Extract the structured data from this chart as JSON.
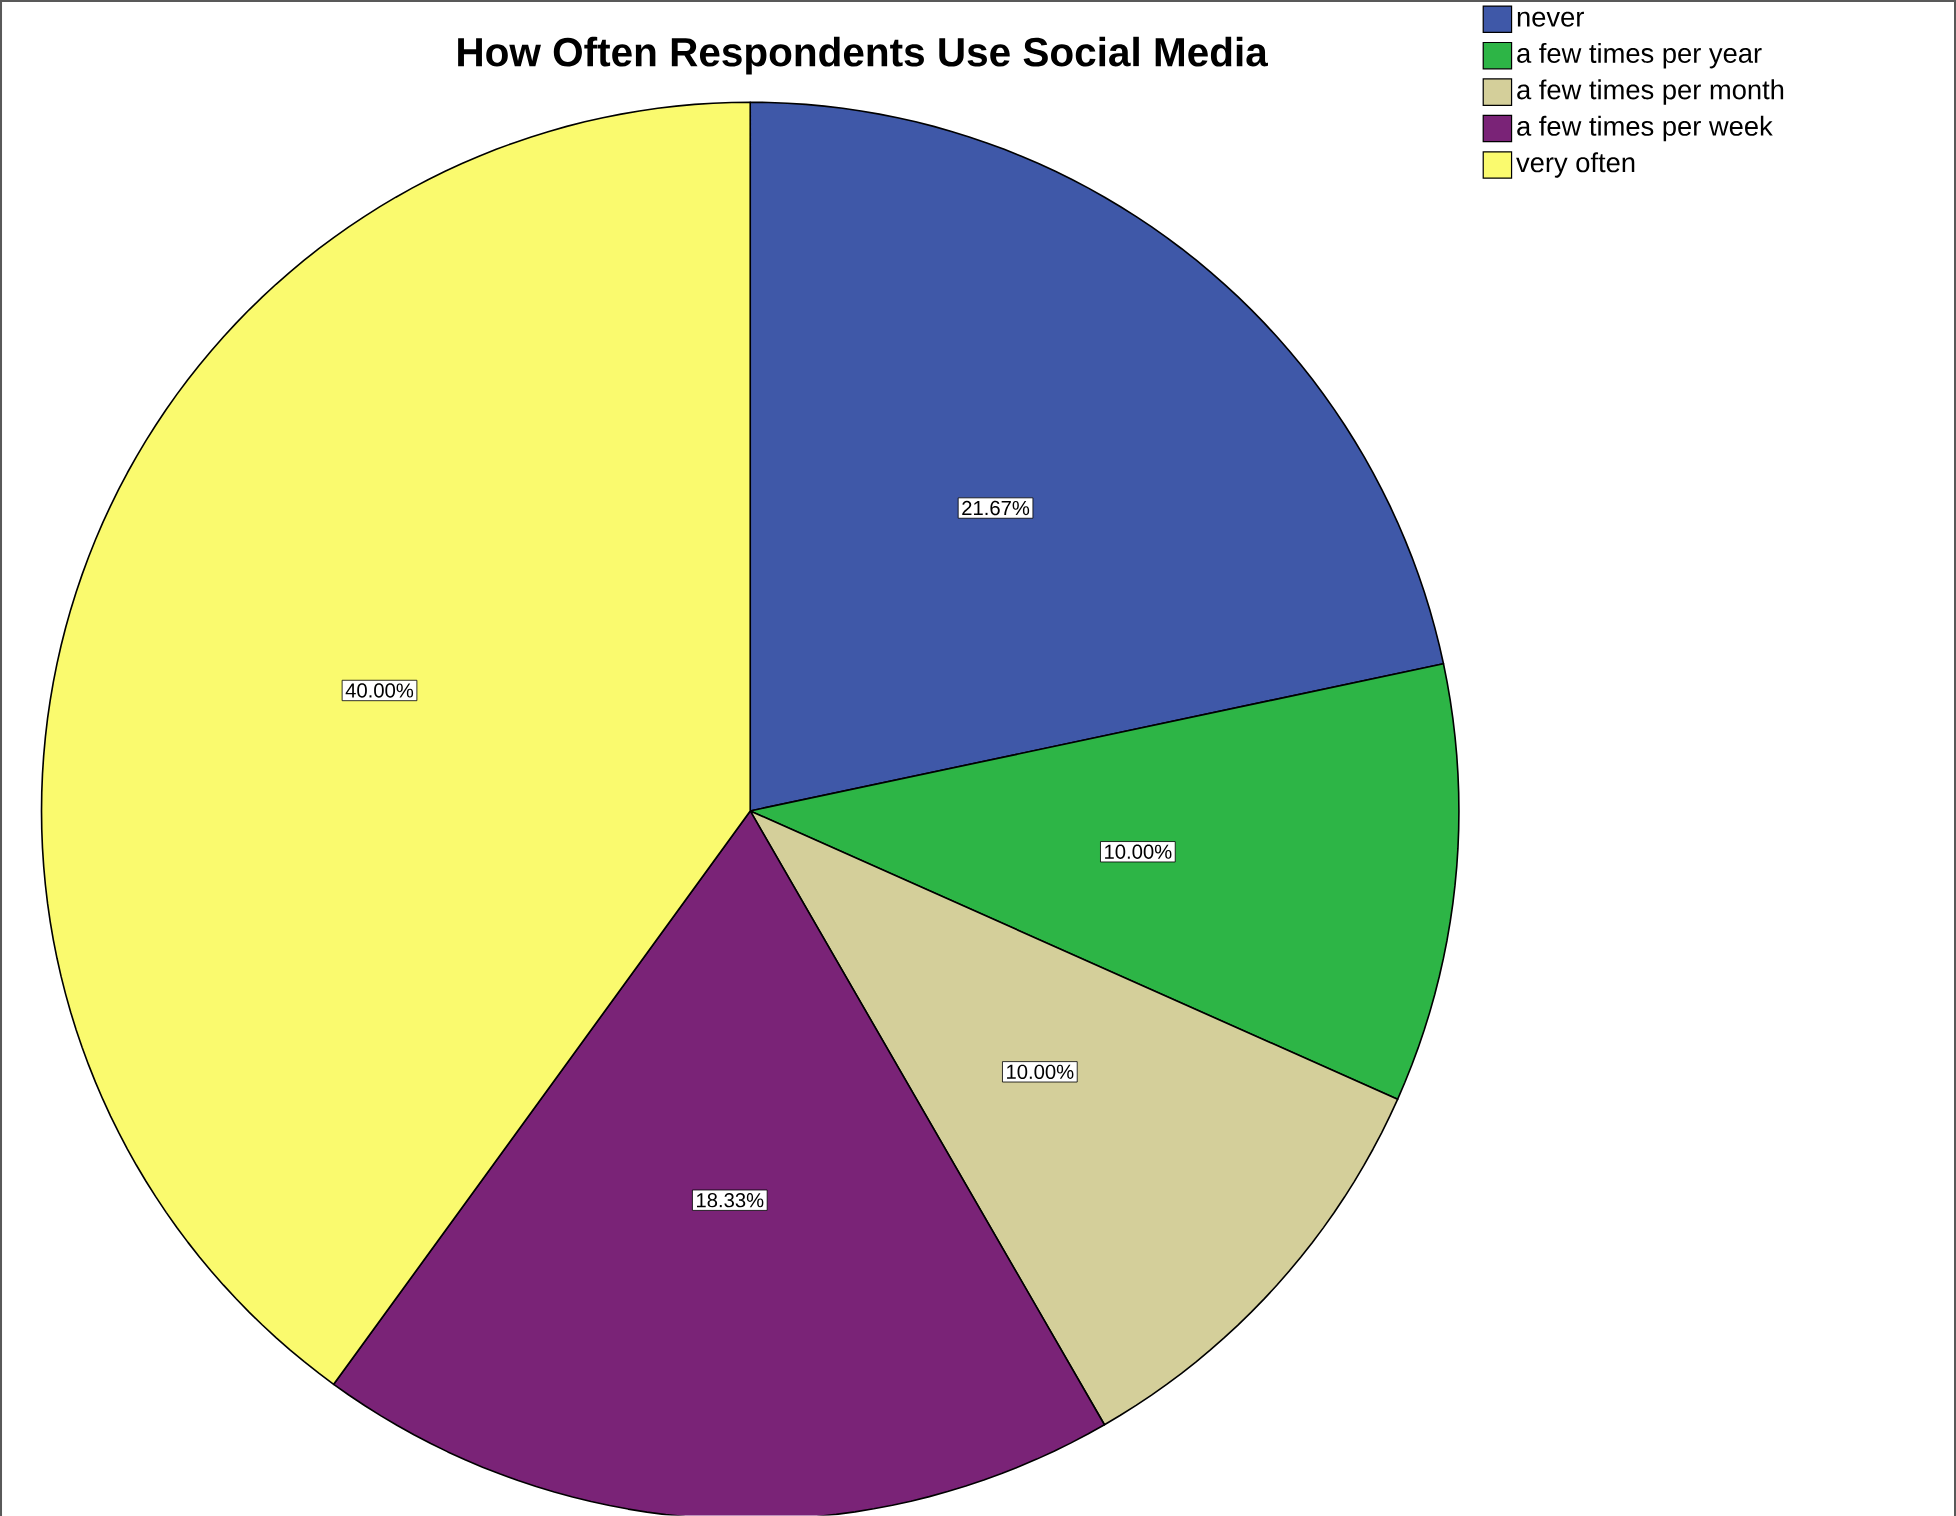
{
  "chart_data": {
    "type": "pie",
    "title": "How Often Respondents Use Social Media",
    "categories": [
      "never",
      "a few times per year",
      "a few times per month",
      "a few times per week",
      "very often"
    ],
    "values": [
      21.67,
      10.0,
      10.0,
      18.33,
      40.0
    ],
    "colors": [
      "#3f58a8",
      "#2db546",
      "#d4cf9a",
      "#7a2377",
      "#fafa6e"
    ],
    "value_labels": [
      "21.67%",
      "10.00%",
      "10.00%",
      "18.33%",
      "40.00%"
    ],
    "legend": "top right"
  }
}
